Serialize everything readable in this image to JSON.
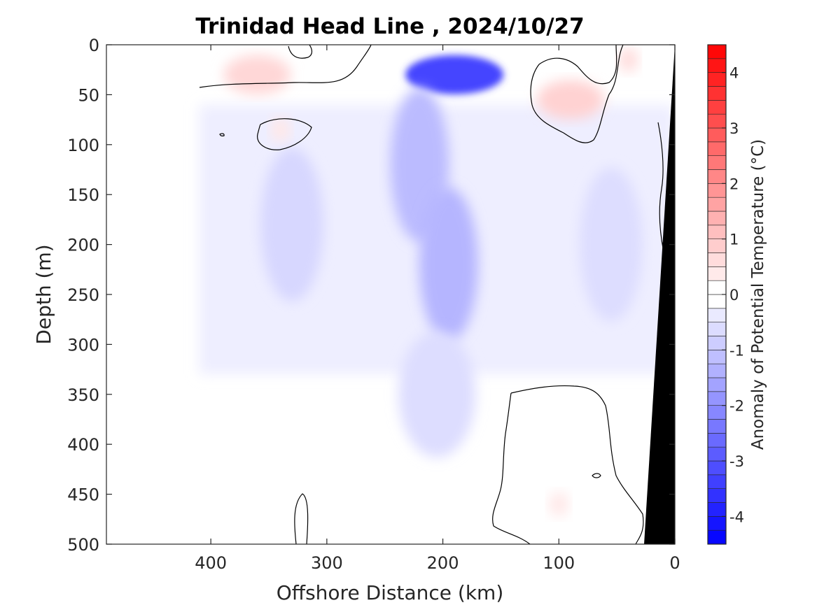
{
  "chart_data": {
    "type": "heatmap",
    "title": "Trinidad Head Line , 2024/10/27",
    "xlabel": "Offshore Distance (km)",
    "ylabel": "Depth (m)",
    "colorbar_label": "Anomaly of Potential Temperature (°C)",
    "x_axis": {
      "range": [
        490,
        0
      ],
      "reversed": true,
      "ticks": [
        400,
        300,
        200,
        100,
        0
      ]
    },
    "y_axis": {
      "range": [
        0,
        500
      ],
      "reversed": true,
      "ticks": [
        0,
        50,
        100,
        150,
        200,
        250,
        300,
        350,
        400,
        450,
        500
      ]
    },
    "colorbar": {
      "range": [
        -4.5,
        4.5
      ],
      "ticks": [
        -4,
        -3,
        -2,
        -1,
        0,
        1,
        2,
        3,
        4
      ],
      "step": 0.25,
      "colormap": "blue-white-red",
      "neg_color": "#0000ff",
      "zero_color": "#ffffff",
      "pos_color": "#ff0000"
    },
    "contour_levels": [
      0
    ],
    "grid": false,
    "data_extent_km": [
      410,
      0
    ],
    "seafloor_color": "#000000",
    "anomaly_features": [
      {
        "label": "cold core",
        "x_km": 190,
        "depth_m": 30,
        "value": -3.3
      },
      {
        "label": "cold tongue",
        "x_km": 220,
        "depth_m": 120,
        "value": -1.2
      },
      {
        "label": "cold tongue",
        "x_km": 195,
        "depth_m": 220,
        "value": -1.3
      },
      {
        "label": "cold lobe",
        "x_km": 205,
        "depth_m": 350,
        "value": -0.6
      },
      {
        "label": "cold patch",
        "x_km": 330,
        "depth_m": 180,
        "value": -0.7
      },
      {
        "label": "cold patch",
        "x_km": 55,
        "depth_m": 200,
        "value": -0.6
      },
      {
        "label": "warm patch",
        "x_km": 360,
        "depth_m": 30,
        "value": 0.7
      },
      {
        "label": "warm patch",
        "x_km": 90,
        "depth_m": 55,
        "value": 0.8
      },
      {
        "label": "warm spot",
        "x_km": 40,
        "depth_m": 15,
        "value": 0.6
      },
      {
        "label": "warm spot",
        "x_km": 340,
        "depth_m": 85,
        "value": 0.4
      },
      {
        "label": "warm spot",
        "x_km": 100,
        "depth_m": 460,
        "value": 0.4
      }
    ]
  }
}
